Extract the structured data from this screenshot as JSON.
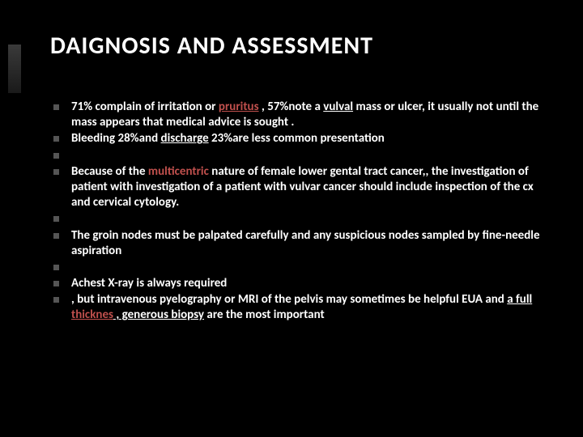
{
  "slide": {
    "background": "#000000",
    "title_color": "#ffffff",
    "text_color": "#ffffff",
    "highlight_color": "#c0504d",
    "bullet_color": "#555555",
    "title_fontsize": 30,
    "body_fontsize": 15,
    "title": "DAIGNOSIS AND ASSESSMENT",
    "bullets": [
      {
        "runs": [
          {
            "t": "71% complain of irritation  or "
          },
          {
            "t": "pruritus",
            "u": true,
            "red": true
          },
          {
            "t": " , 57%note a "
          },
          {
            "t": "vulval",
            "u": true
          },
          {
            "t": " mass or ulcer, it usually not until the mass appears that medical advice is sought  ."
          }
        ]
      },
      {
        "runs": [
          {
            "t": "Bleeding 28%and "
          },
          {
            "t": "discharge",
            "u": true
          },
          {
            "t": " 23%are less common presentation"
          }
        ]
      },
      {
        "runs": []
      },
      {
        "runs": [
          {
            "t": "Because of the "
          },
          {
            "t": "multicentric",
            "red": true
          },
          {
            "t": " nature of female lower gental tract cancer,, the investigation of patient with investigation of a patient with vulvar cancer should include inspection of the cx and cervical cytology."
          }
        ]
      },
      {
        "runs": []
      },
      {
        "runs": [
          {
            "t": "The groin nodes must be palpated carefully and any suspicious nodes sampled by fine-needle aspiration"
          }
        ]
      },
      {
        "runs": []
      },
      {
        "runs": [
          {
            "t": "Achest X-ray is always required"
          }
        ]
      },
      {
        "runs": [
          {
            "t": ", but intravenous pyelography or MRI of the pelvis may sometimes be helpful EUA and "
          },
          {
            "t": "a full ",
            "u": true
          },
          {
            "t": "thicknes",
            "u": true,
            "red": true
          },
          {
            "t": " , generous biopsy",
            "u": true
          },
          {
            "t": " are the most important"
          }
        ]
      }
    ]
  }
}
